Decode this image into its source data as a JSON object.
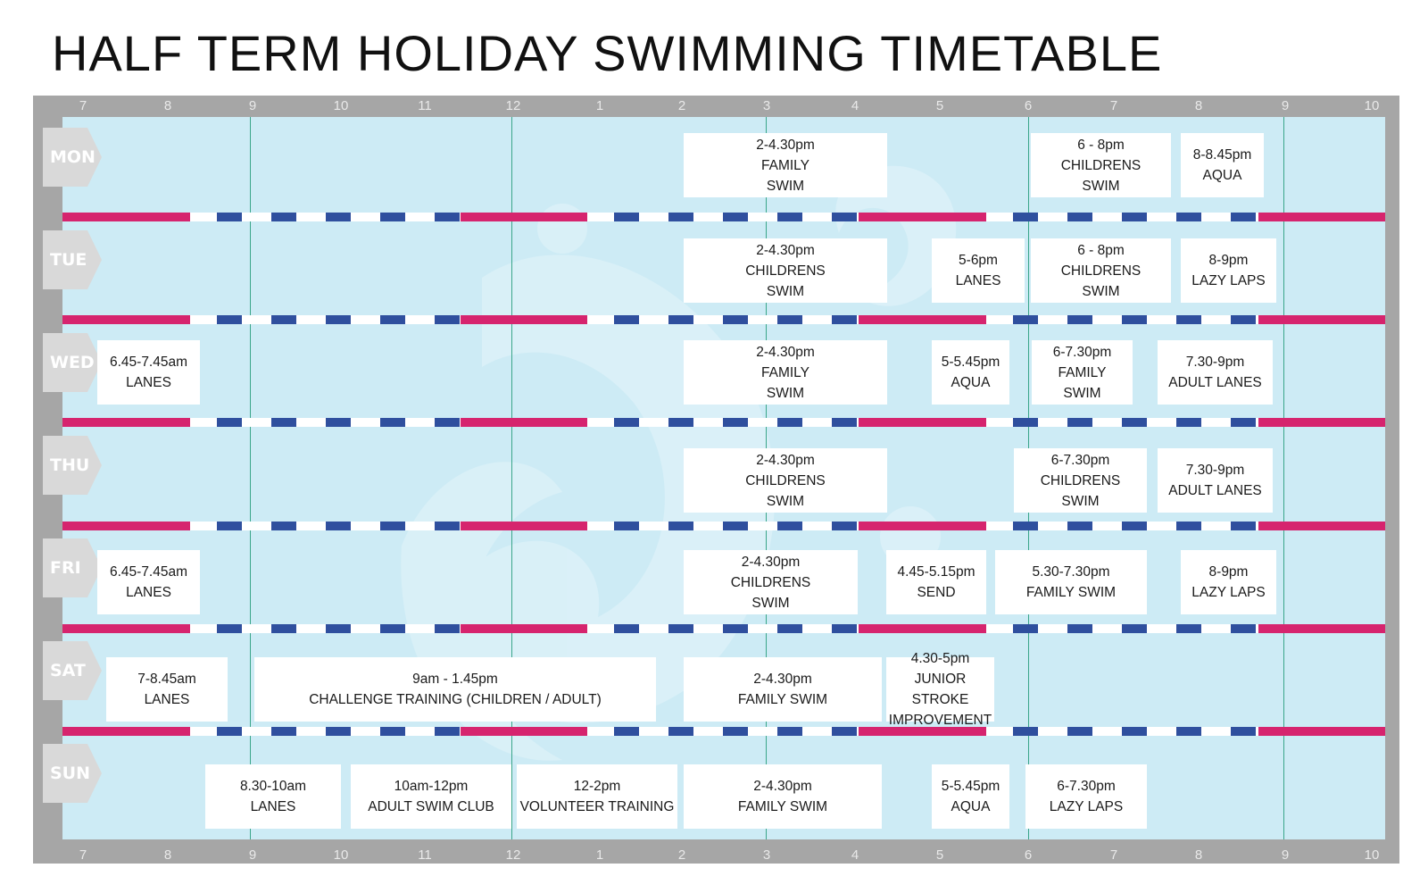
{
  "title": "HALF TERM HOLIDAY SWIMMING TIMETABLE",
  "colors": {
    "frame": "#a6a6a6",
    "water": "#cdebf5",
    "lane_red": "#d6246e",
    "lane_blue": "#2f4f9e",
    "grid_line": "#3aa68a"
  },
  "time_axis": [
    "7",
    "8",
    "9",
    "10",
    "11",
    "12",
    "1",
    "2",
    "3",
    "4",
    "5",
    "6",
    "7",
    "8",
    "9",
    "10"
  ],
  "days": [
    {
      "label": "MON",
      "sessions": [
        {
          "text": "2-4.30pm\nFAMILY\nSWIM"
        },
        {
          "text": "6 - 8pm\nCHILDRENS\nSWIM"
        },
        {
          "text": "8-8.45pm\nAQUA"
        }
      ]
    },
    {
      "label": "TUE",
      "sessions": [
        {
          "text": "2-4.30pm\nCHILDRENS\nSWIM"
        },
        {
          "text": "5-6pm\nLANES"
        },
        {
          "text": "6 - 8pm\nCHILDRENS\nSWIM"
        },
        {
          "text": "8-9pm\nLAZY LAPS"
        }
      ]
    },
    {
      "label": "WED",
      "sessions": [
        {
          "text": "6.45-7.45am\nLANES"
        },
        {
          "text": "2-4.30pm\nFAMILY\nSWIM"
        },
        {
          "text": "5-5.45pm\nAQUA"
        },
        {
          "text": "6-7.30pm\nFAMILY\nSWIM"
        },
        {
          "text": "7.30-9pm\nADULT LANES"
        }
      ]
    },
    {
      "label": "THU",
      "sessions": [
        {
          "text": "2-4.30pm\nCHILDRENS\nSWIM"
        },
        {
          "text": "6-7.30pm\nCHILDRENS\nSWIM"
        },
        {
          "text": "7.30-9pm\nADULT LANES"
        }
      ]
    },
    {
      "label": "FRI",
      "sessions": [
        {
          "text": "6.45-7.45am\nLANES"
        },
        {
          "text": "2-4.30pm\nCHILDRENS\nSWIM"
        },
        {
          "text": "4.45-5.15pm\nSEND"
        },
        {
          "text": "5.30-7.30pm\nFAMILY SWIM"
        },
        {
          "text": "8-9pm\nLAZY LAPS"
        }
      ]
    },
    {
      "label": "SAT",
      "sessions": [
        {
          "text": "7-8.45am\nLANES"
        },
        {
          "text": "9am - 1.45pm\nCHALLENGE TRAINING (CHILDREN / ADULT)"
        },
        {
          "text": "2-4.30pm\nFAMILY SWIM"
        },
        {
          "text": "4.30-5pm\nJUNIOR STROKE\nIMPROVEMENT"
        }
      ]
    },
    {
      "label": "SUN",
      "sessions": [
        {
          "text": "8.30-10am\nLANES"
        },
        {
          "text": "10am-12pm\nADULT SWIM CLUB"
        },
        {
          "text": "12-2pm\nVOLUNTEER TRAINING"
        },
        {
          "text": "2-4.30pm\nFAMILY SWIM"
        },
        {
          "text": "5-5.45pm\nAQUA"
        },
        {
          "text": "6-7.30pm\nLAZY LAPS"
        }
      ]
    }
  ]
}
